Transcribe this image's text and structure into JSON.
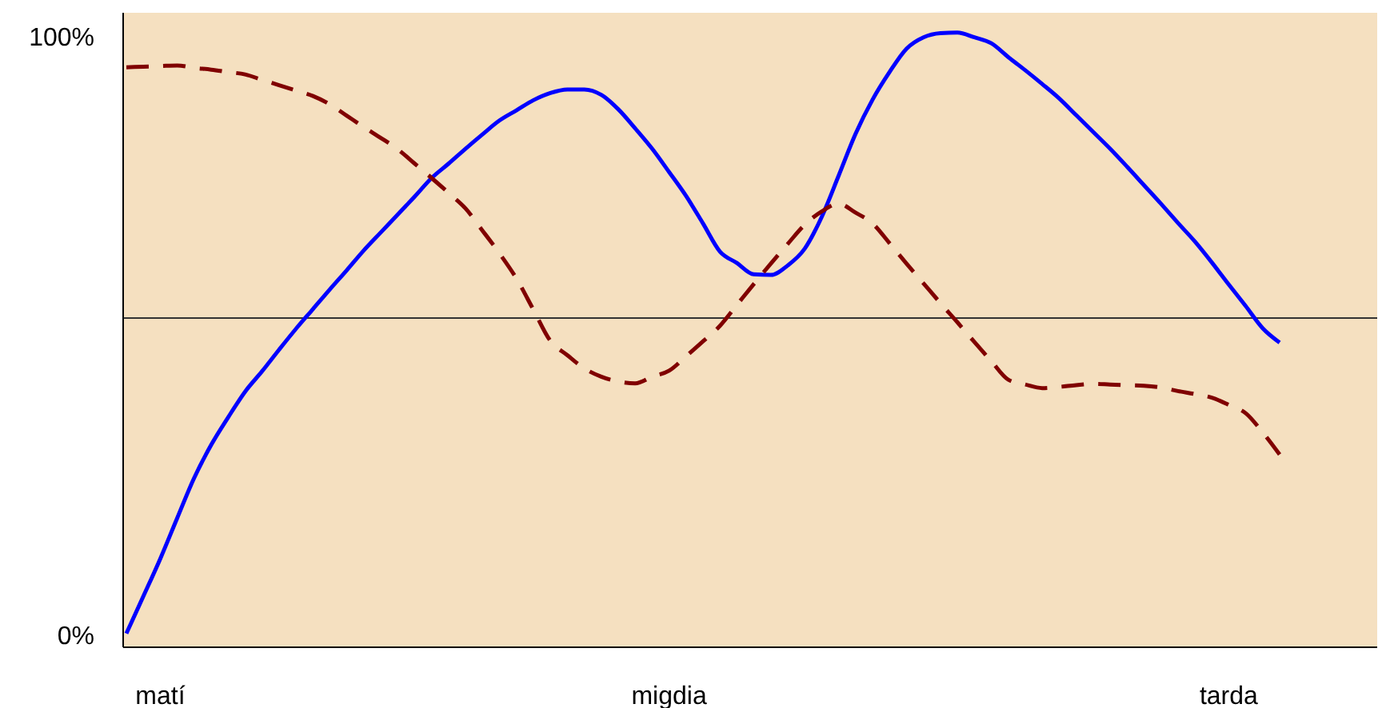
{
  "chart_data": {
    "type": "line",
    "categories": [
      null,
      null,
      "matí",
      null,
      null,
      null,
      null,
      null,
      null,
      null,
      null,
      null,
      null,
      null,
      null,
      null,
      null,
      null,
      null,
      null,
      null,
      null,
      null,
      null,
      null,
      null,
      null,
      null,
      null,
      null,
      null,
      null,
      "migdia",
      null,
      null,
      null,
      null,
      null,
      null,
      null,
      null,
      null,
      null,
      null,
      null,
      null,
      null,
      null,
      null,
      null,
      null,
      null,
      null,
      null,
      null,
      null,
      null,
      null,
      null,
      null,
      null,
      null,
      null,
      null,
      null,
      "tarda",
      null,
      null,
      null
    ],
    "ylim": [
      -2,
      104
    ],
    "yticks": [
      {
        "value": 0,
        "label": "0%"
      },
      {
        "value": 100,
        "label": "100%"
      }
    ],
    "grid": false,
    "legend": false,
    "series": [
      {
        "color": "#0000ff",
        "line_style": "solid",
        "values": [
          0.3,
          6.5,
          12.8,
          19.6,
          26.3,
          31.8,
          36.4,
          40.7,
          44.1,
          47.7,
          51.2,
          54.5,
          57.8,
          61.0,
          64.3,
          67.3,
          70.3,
          73.3,
          76.4,
          78.8,
          81.3,
          83.7,
          86.0,
          87.7,
          89.4,
          90.6,
          91.2,
          91.2,
          90.3,
          87.9,
          84.7,
          81.3,
          77.4,
          73.4,
          68.8,
          64.1,
          62.2,
          60.3,
          60.2,
          61.8,
          64.6,
          69.9,
          76.8,
          83.8,
          89.5,
          94.1,
          98.0,
          99.9,
          100.6,
          100.7,
          99.9,
          98.9,
          96.6,
          94.4,
          92.1,
          89.7,
          86.9,
          84.1,
          81.3,
          78.3,
          75.2,
          72.1,
          68.9,
          65.8,
          62.3,
          58.6,
          55.0,
          51.3,
          48.9
        ]
      },
      {
        "color": "#800000",
        "line_style": "dashed",
        "values": [
          94.9,
          95.0,
          95.1,
          95.2,
          94.8,
          94.5,
          94.1,
          93.7,
          92.8,
          91.9,
          91.0,
          90.1,
          88.7,
          86.8,
          84.9,
          83.1,
          81.2,
          78.8,
          76.4,
          73.9,
          71.3,
          67.6,
          63.8,
          59.6,
          54.4,
          49.2,
          46.8,
          44.6,
          43.2,
          42.4,
          42.1,
          43.2,
          44.2,
          46.6,
          49.1,
          51.7,
          55.2,
          58.7,
          62.1,
          65.4,
          68.6,
          70.8,
          72.1,
          70.6,
          68.8,
          65.5,
          62.1,
          58.8,
          55.5,
          52.3,
          49.0,
          45.8,
          42.7,
          41.9,
          41.3,
          41.5,
          41.8,
          42.0,
          41.9,
          41.8,
          41.7,
          41.4,
          40.8,
          40.3,
          39.7,
          38.5,
          37.1,
          33.9,
          30.2
        ]
      }
    ],
    "ref_lines": [
      {
        "axis": "y",
        "value": 53,
        "color": "#333333",
        "line_style": "solid"
      }
    ]
  }
}
